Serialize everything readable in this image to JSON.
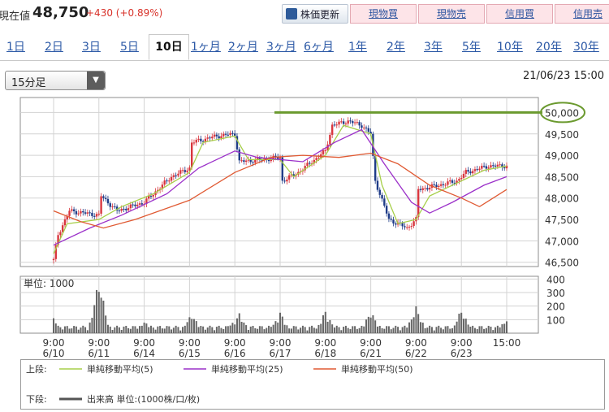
{
  "header": {
    "price_label": "現在値",
    "price_value": "48,750",
    "price_change": "+430 (+0.89%)",
    "refresh_label": "株価更新",
    "trade_buttons": [
      "現物買",
      "現物売",
      "信用買",
      "信用売"
    ]
  },
  "periods": [
    "1日",
    "2日",
    "3日",
    "5日",
    "10日",
    "1ヶ月",
    "2ヶ月",
    "3ヶ月",
    "6ヶ月",
    "1年",
    "2年",
    "3年",
    "5年",
    "10年",
    "20年",
    "30年"
  ],
  "active_period": "10日",
  "interval_select": "15分足",
  "as_of": "21/06/23 15:00",
  "colors": {
    "up": "#d9363e",
    "down": "#1f3c88",
    "ma5": "#a7cf4a",
    "ma25": "#9b30c9",
    "ma50": "#e05a33",
    "volume": "#666666",
    "highlight": "#6b9a2f"
  },
  "chart_data": {
    "type": "candlestick",
    "price_axis": {
      "ticks": [
        "50,000",
        "49,500",
        "49,000",
        "48,500",
        "48,000",
        "47,500",
        "47,000",
        "46,500"
      ],
      "range": [
        46400,
        50350
      ]
    },
    "volume_axis": {
      "unit_label": "単位: 1000",
      "ticks": [
        "400",
        "300",
        "200",
        "100"
      ],
      "range": [
        0,
        420
      ]
    },
    "x_ticks": [
      {
        "time": "9:00",
        "date": "6/10"
      },
      {
        "time": "9:00",
        "date": "6/11"
      },
      {
        "time": "9:00",
        "date": "6/14"
      },
      {
        "time": "9:00",
        "date": "6/15"
      },
      {
        "time": "9:00",
        "date": "6/16"
      },
      {
        "time": "9:00",
        "date": "6/17"
      },
      {
        "time": "9:00",
        "date": "6/18"
      },
      {
        "time": "9:00",
        "date": "6/21"
      },
      {
        "time": "9:00",
        "date": "6/22"
      },
      {
        "time": "9:00",
        "date": "6/23"
      },
      {
        "time": "15:00",
        "date": ""
      }
    ],
    "resistance_level": 50000,
    "close_path": [
      {
        "x": 0,
        "y": 46550
      },
      {
        "x": 0.1,
        "y": 47150
      },
      {
        "x": 0.35,
        "y": 47700
      },
      {
        "x": 1,
        "y": 47600
      },
      {
        "x": 1.05,
        "y": 48050
      },
      {
        "x": 1.4,
        "y": 47700
      },
      {
        "x": 2,
        "y": 47900
      },
      {
        "x": 2.6,
        "y": 48500
      },
      {
        "x": 3,
        "y": 48700
      },
      {
        "x": 3.05,
        "y": 49300
      },
      {
        "x": 3.6,
        "y": 49450
      },
      {
        "x": 4,
        "y": 49500
      },
      {
        "x": 4.1,
        "y": 48850
      },
      {
        "x": 4.6,
        "y": 48900
      },
      {
        "x": 5,
        "y": 48950
      },
      {
        "x": 5.05,
        "y": 48400
      },
      {
        "x": 5.4,
        "y": 48600
      },
      {
        "x": 6,
        "y": 49100
      },
      {
        "x": 6.15,
        "y": 49700
      },
      {
        "x": 6.5,
        "y": 49800
      },
      {
        "x": 6.8,
        "y": 49700
      },
      {
        "x": 7,
        "y": 49500
      },
      {
        "x": 7.1,
        "y": 48400
      },
      {
        "x": 7.4,
        "y": 47500
      },
      {
        "x": 7.8,
        "y": 47300
      },
      {
        "x": 8,
        "y": 47500
      },
      {
        "x": 8.05,
        "y": 48200
      },
      {
        "x": 8.5,
        "y": 48300
      },
      {
        "x": 8.9,
        "y": 48400
      },
      {
        "x": 9.1,
        "y": 48600
      },
      {
        "x": 9.6,
        "y": 48750
      },
      {
        "x": 10,
        "y": 48750
      }
    ],
    "series": [
      {
        "name": "単純移動平均(5)",
        "stage": "上段",
        "values": [
          {
            "x": 0,
            "y": 46700
          },
          {
            "x": 0.3,
            "y": 47400
          },
          {
            "x": 1,
            "y": 47500
          },
          {
            "x": 1.5,
            "y": 47800
          },
          {
            "x": 2.2,
            "y": 48100
          },
          {
            "x": 3,
            "y": 48600
          },
          {
            "x": 3.3,
            "y": 49300
          },
          {
            "x": 4,
            "y": 49450
          },
          {
            "x": 4.3,
            "y": 48900
          },
          {
            "x": 5,
            "y": 48900
          },
          {
            "x": 5.3,
            "y": 48500
          },
          {
            "x": 6,
            "y": 49000
          },
          {
            "x": 6.4,
            "y": 49700
          },
          {
            "x": 7,
            "y": 49500
          },
          {
            "x": 7.25,
            "y": 48300
          },
          {
            "x": 7.6,
            "y": 47400
          },
          {
            "x": 8,
            "y": 47500
          },
          {
            "x": 8.3,
            "y": 48050
          },
          {
            "x": 9,
            "y": 48400
          },
          {
            "x": 9.5,
            "y": 48650
          },
          {
            "x": 10,
            "y": 48750
          }
        ]
      },
      {
        "name": "単純移動平均(25)",
        "stage": "上段",
        "values": [
          {
            "x": 0,
            "y": 46900
          },
          {
            "x": 0.8,
            "y": 47300
          },
          {
            "x": 1.5,
            "y": 47600
          },
          {
            "x": 2.5,
            "y": 48100
          },
          {
            "x": 3.2,
            "y": 48700
          },
          {
            "x": 4,
            "y": 49100
          },
          {
            "x": 4.5,
            "y": 48950
          },
          {
            "x": 5.5,
            "y": 48850
          },
          {
            "x": 6.2,
            "y": 49300
          },
          {
            "x": 6.8,
            "y": 49600
          },
          {
            "x": 7.3,
            "y": 48800
          },
          {
            "x": 7.9,
            "y": 47900
          },
          {
            "x": 8.3,
            "y": 47650
          },
          {
            "x": 8.8,
            "y": 47900
          },
          {
            "x": 9.5,
            "y": 48300
          },
          {
            "x": 10,
            "y": 48500
          }
        ]
      },
      {
        "name": "単純移動平均(50)",
        "stage": "上段",
        "values": [
          {
            "x": 0,
            "y": 47700
          },
          {
            "x": 0.6,
            "y": 47450
          },
          {
            "x": 1.1,
            "y": 47300
          },
          {
            "x": 1.8,
            "y": 47500
          },
          {
            "x": 3,
            "y": 47950
          },
          {
            "x": 4,
            "y": 48600
          },
          {
            "x": 4.8,
            "y": 48950
          },
          {
            "x": 5.5,
            "y": 49000
          },
          {
            "x": 6.3,
            "y": 48950
          },
          {
            "x": 7,
            "y": 49050
          },
          {
            "x": 7.6,
            "y": 48800
          },
          {
            "x": 8.3,
            "y": 48300
          },
          {
            "x": 9,
            "y": 48000
          },
          {
            "x": 9.4,
            "y": 47800
          },
          {
            "x": 10,
            "y": 48200
          }
        ]
      },
      {
        "name": "出来高 単位:(1000株/口/枚)",
        "stage": "下段",
        "values": []
      }
    ],
    "volume_spikes": [
      {
        "x": 0,
        "y": 110
      },
      {
        "x": 1,
        "y": 400
      },
      {
        "x": 2,
        "y": 90
      },
      {
        "x": 3,
        "y": 90
      },
      {
        "x": 3.05,
        "y": 150
      },
      {
        "x": 4,
        "y": 100
      },
      {
        "x": 4.1,
        "y": 150
      },
      {
        "x": 5,
        "y": 160
      },
      {
        "x": 6,
        "y": 170
      },
      {
        "x": 7,
        "y": 170
      },
      {
        "x": 8,
        "y": 200
      },
      {
        "x": 9,
        "y": 180
      },
      {
        "x": 10,
        "y": 110
      }
    ],
    "legend": {
      "upper_label": "上段:",
      "lower_label": "下段:",
      "items": [
        "単純移動平均(5)",
        "単純移動平均(25)",
        "単純移動平均(50)"
      ],
      "volume_item": "出来高 単位:(1000株/口/枚)"
    }
  }
}
